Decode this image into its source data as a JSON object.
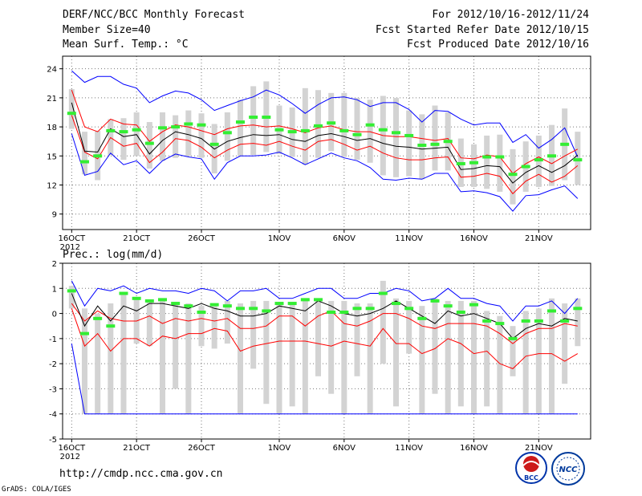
{
  "header": {
    "title": "DERF/NCC/BCC Monthly Forecast",
    "member_size": "Member Size=40",
    "variable1": "Mean Surf. Temp.: °C",
    "forecast_period": "For 2012/10/16-2012/11/24",
    "refer_date": "Fcst Started Refer Date 2012/10/15",
    "produced_date": "Fcst Produced Date 2012/10/16"
  },
  "panel2_label": "Prec.: log(mm/d)",
  "footer": {
    "url": "http://cmdp.ncc.cma.gov.cn",
    "credit": "GrADS: COLA/IGES",
    "logo1_text": "BCC",
    "logo2_text": "NCC"
  },
  "x_ticks": [
    {
      "day": 1,
      "label": "16OCT"
    },
    {
      "day": 6,
      "label": "21OCT"
    },
    {
      "day": 11,
      "label": "26OCT"
    },
    {
      "day": 17,
      "label": "1NOV"
    },
    {
      "day": 22,
      "label": "6NOV"
    },
    {
      "day": 27,
      "label": "11NOV"
    },
    {
      "day": 32,
      "label": "16NOV"
    },
    {
      "day": 37,
      "label": "21NOV"
    }
  ],
  "x_year_label": "2012",
  "chart_data": [
    {
      "type": "line",
      "title": "Mean Surf. Temp.: °C",
      "xlabel": "",
      "ylabel": "",
      "x": [
        1,
        2,
        3,
        4,
        5,
        6,
        7,
        8,
        9,
        10,
        11,
        12,
        13,
        14,
        15,
        16,
        17,
        18,
        19,
        20,
        21,
        22,
        23,
        24,
        25,
        26,
        27,
        28,
        29,
        30,
        31,
        32,
        33,
        34,
        35,
        36,
        37,
        38,
        39,
        40
      ],
      "xlim": [
        0.3,
        41
      ],
      "ylim": [
        7.4,
        25.3
      ],
      "yticks": [
        9,
        12,
        15,
        18,
        21,
        24
      ],
      "grid": true,
      "series": [
        {
          "name": "ensemble mean",
          "color": "#000000",
          "values": [
            20.5,
            15.5,
            15.4,
            17.8,
            17.0,
            17.2,
            15.2,
            16.6,
            17.5,
            17.2,
            16.8,
            15.7,
            16.5,
            16.9,
            17.2,
            17.1,
            17.2,
            16.7,
            16.5,
            17.1,
            17.3,
            17.0,
            16.6,
            16.8,
            16.3,
            16.0,
            15.9,
            15.7,
            15.8,
            15.9,
            13.6,
            13.7,
            14.0,
            13.9,
            12.2,
            13.3,
            14.0,
            13.3,
            14.0,
            15.1
          ]
        },
        {
          "name": "upper band (red)",
          "color": "#ff0000",
          "values": [
            21.8,
            18.0,
            17.5,
            18.8,
            18.3,
            18.2,
            16.5,
            17.5,
            18.2,
            18.0,
            17.6,
            17.2,
            17.8,
            18.1,
            18.2,
            18.0,
            18.1,
            17.8,
            17.4,
            17.9,
            18.1,
            17.7,
            17.5,
            17.5,
            17.1,
            17.0,
            17.0,
            16.8,
            16.6,
            16.8,
            14.8,
            14.7,
            15.1,
            14.9,
            13.2,
            14.2,
            14.9,
            14.2,
            15.0,
            15.7
          ]
        },
        {
          "name": "lower band (red)",
          "color": "#ff0000",
          "values": [
            19.2,
            15.4,
            14.7,
            16.9,
            16.0,
            16.3,
            14.3,
            15.4,
            16.8,
            16.6,
            15.9,
            14.8,
            15.6,
            16.2,
            16.3,
            16.1,
            16.5,
            16.0,
            15.6,
            16.5,
            16.7,
            16.2,
            15.6,
            16.0,
            15.3,
            14.8,
            14.6,
            14.6,
            14.8,
            14.9,
            12.8,
            12.9,
            13.2,
            12.9,
            11.1,
            12.4,
            13.1,
            12.3,
            12.9,
            14.0
          ]
        },
        {
          "name": "upper band (blue)",
          "color": "#0000ff",
          "values": [
            23.8,
            22.6,
            23.2,
            23.2,
            22.4,
            22.0,
            20.5,
            21.2,
            21.7,
            21.5,
            20.8,
            19.7,
            20.2,
            20.7,
            21.1,
            21.8,
            21.3,
            20.4,
            19.4,
            20.3,
            21.0,
            21.1,
            20.8,
            20.1,
            20.5,
            20.5,
            19.8,
            18.5,
            19.7,
            19.6,
            18.8,
            18.2,
            18.4,
            18.4,
            16.4,
            17.2,
            15.8,
            16.7,
            17.9,
            14.9
          ]
        },
        {
          "name": "lower band (blue)",
          "color": "#0000ff",
          "values": [
            17.3,
            13.0,
            13.4,
            15.3,
            14.1,
            14.5,
            13.2,
            14.5,
            15.2,
            14.9,
            14.7,
            12.6,
            14.3,
            15.0,
            15.0,
            15.1,
            15.4,
            14.8,
            14.1,
            14.7,
            15.3,
            14.8,
            14.5,
            13.8,
            12.6,
            12.5,
            12.7,
            12.6,
            13.2,
            13.2,
            11.3,
            11.4,
            11.2,
            10.8,
            9.3,
            10.9,
            11.0,
            11.5,
            11.9,
            10.6
          ]
        },
        {
          "name": "observed / climate (green)",
          "color": "#33ee33",
          "values": [
            19.4,
            14.4,
            15.0,
            17.6,
            17.5,
            17.7,
            16.3,
            17.9,
            18.0,
            18.3,
            18.2,
            16.2,
            17.4,
            18.5,
            19.0,
            19.0,
            17.7,
            17.5,
            17.6,
            18.1,
            18.4,
            17.6,
            17.2,
            18.2,
            17.7,
            17.4,
            17.1,
            16.1,
            16.2,
            16.5,
            14.2,
            14.3,
            14.9,
            14.9,
            13.1,
            13.9,
            14.6,
            15.0,
            16.2,
            14.6
          ]
        },
        {
          "name": "range box top (gray)",
          "color": "#d3d3d3",
          "values": [
            21.9,
            17.5,
            17.6,
            18.8,
            18.9,
            19.5,
            18.5,
            19.5,
            19.2,
            19.7,
            19.4,
            18.3,
            19.5,
            20.8,
            22.2,
            22.7,
            20.2,
            20.0,
            22.0,
            21.8,
            21.5,
            21.5,
            21.0,
            20.8,
            21.2,
            21.0,
            19.7,
            19.3,
            20.2,
            19.5,
            16.8,
            16.2,
            17.1,
            17.2,
            15.7,
            16.5,
            17.1,
            18.2,
            19.9,
            17.5
          ]
        },
        {
          "name": "range box bottom (gray)",
          "color": "#d3d3d3",
          "values": [
            17.8,
            13.1,
            12.5,
            15.1,
            14.6,
            15.0,
            13.7,
            14.5,
            14.8,
            15.0,
            14.8,
            13.2,
            14.5,
            15.0,
            15.1,
            15.4,
            15.2,
            14.9,
            14.1,
            14.8,
            15.5,
            14.9,
            14.6,
            14.3,
            13.0,
            12.8,
            12.9,
            12.6,
            13.5,
            13.5,
            11.8,
            11.8,
            11.6,
            11.3,
            10.0,
            11.3,
            11.8,
            11.9,
            12.5,
            12.0
          ]
        }
      ]
    },
    {
      "type": "line",
      "title": "Prec.: log(mm/d)",
      "xlabel": "",
      "ylabel": "",
      "x": [
        1,
        2,
        3,
        4,
        5,
        6,
        7,
        8,
        9,
        10,
        11,
        12,
        13,
        14,
        15,
        16,
        17,
        18,
        19,
        20,
        21,
        22,
        23,
        24,
        25,
        26,
        27,
        28,
        29,
        30,
        31,
        32,
        33,
        34,
        35,
        36,
        37,
        38,
        39,
        40
      ],
      "xlim": [
        0.3,
        41
      ],
      "ylim": [
        -5,
        2
      ],
      "yticks": [
        -5,
        -4,
        -3,
        -2,
        -1,
        0,
        1,
        2
      ],
      "grid": true,
      "series": [
        {
          "name": "ensemble mean",
          "color": "#000000",
          "values": [
            0.8,
            -0.5,
            0.3,
            -0.3,
            0.3,
            0.1,
            0.4,
            0.4,
            0.3,
            0.2,
            0.4,
            0.2,
            0.1,
            -0.1,
            -0.1,
            0.0,
            0.3,
            0.2,
            0.1,
            0.5,
            0.3,
            0.0,
            -0.1,
            0.0,
            0.2,
            0.5,
            0.2,
            -0.1,
            -0.4,
            0.1,
            -0.1,
            0.0,
            -0.2,
            -0.4,
            -1.0,
            -0.6,
            -0.4,
            -0.5,
            -0.2,
            -0.3
          ]
        },
        {
          "name": "upper band (red)",
          "color": "#ff0000",
          "values": [
            0.4,
            -0.3,
            0.1,
            -0.2,
            -0.3,
            -0.3,
            -0.1,
            -0.4,
            -0.2,
            -0.3,
            -0.2,
            -0.3,
            -0.2,
            -0.6,
            -0.6,
            -0.5,
            -0.1,
            -0.1,
            -0.5,
            -0.1,
            0.1,
            -0.4,
            -0.5,
            -0.3,
            0.0,
            0.0,
            -0.2,
            -0.5,
            -0.6,
            -0.4,
            -0.4,
            -0.4,
            -0.5,
            -0.8,
            -1.2,
            -0.8,
            -0.6,
            -0.6,
            -0.4,
            -0.5
          ]
        },
        {
          "name": "lower band (red)",
          "color": "#ff0000",
          "values": [
            0.2,
            -1.3,
            -0.8,
            -1.5,
            -1.0,
            -1.0,
            -1.3,
            -0.9,
            -1.0,
            -0.8,
            -0.8,
            -0.6,
            -0.7,
            -1.5,
            -1.3,
            -1.2,
            -1.1,
            -1.1,
            -1.1,
            -1.2,
            -1.3,
            -1.1,
            -1.2,
            -1.3,
            -0.6,
            -1.2,
            -1.2,
            -1.6,
            -1.4,
            -1.0,
            -1.2,
            -1.6,
            -1.5,
            -2.0,
            -2.2,
            -1.7,
            -1.6,
            -1.6,
            -1.9,
            -1.6
          ]
        },
        {
          "name": "upper band (blue)",
          "color": "#0000ff",
          "values": [
            1.3,
            0.3,
            1.0,
            0.9,
            1.1,
            0.8,
            1.0,
            0.9,
            0.9,
            0.8,
            1.0,
            0.9,
            0.5,
            0.9,
            0.9,
            1.0,
            0.6,
            0.6,
            0.8,
            1.0,
            1.0,
            0.6,
            0.6,
            0.8,
            0.8,
            1.0,
            0.9,
            0.5,
            0.6,
            1.0,
            0.6,
            0.6,
            0.4,
            0.3,
            -0.3,
            0.3,
            0.3,
            0.5,
            0.0,
            0.6
          ]
        },
        {
          "name": "lower band (blue)",
          "color": "#0000ff",
          "values": [
            -1.2,
            -4.0,
            -4.0,
            -4.0,
            -4.0,
            -4.0,
            -4.0,
            -4.0,
            -4.0,
            -4.0,
            -4.0,
            -4.0,
            -4.0,
            -4.0,
            -4.0,
            -4.0,
            -4.0,
            -4.0,
            -4.0,
            -4.0,
            -4.0,
            -4.0,
            -4.0,
            -4.0,
            -4.0,
            -4.0,
            -4.0,
            -4.0,
            -4.0,
            -4.0,
            -4.0,
            -4.0,
            -4.0,
            -4.0,
            -4.0,
            -4.0,
            -4.0,
            -4.0,
            -4.0,
            -4.0
          ]
        },
        {
          "name": "observed / climate (green)",
          "color": "#33ee33",
          "values": [
            0.9,
            -0.8,
            -0.2,
            -0.5,
            0.8,
            0.6,
            0.5,
            0.55,
            0.4,
            0.3,
            0.05,
            0.35,
            0.3,
            0.2,
            0.2,
            0.1,
            0.4,
            0.4,
            0.55,
            0.55,
            0.05,
            0.05,
            0.2,
            0.2,
            0.8,
            0.4,
            0.2,
            -0.2,
            0.5,
            0.3,
            0.05,
            0.35,
            -0.3,
            -0.4,
            -1.0,
            -0.3,
            -0.3,
            0.1,
            -0.3,
            0.2
          ]
        },
        {
          "name": "range box top (gray)",
          "color": "#d3d3d3",
          "values": [
            1.1,
            0.2,
            0.0,
            0.4,
            0.8,
            0.6,
            0.5,
            0.5,
            0.4,
            0.4,
            0.3,
            0.4,
            0.5,
            0.4,
            0.5,
            0.5,
            0.4,
            0.4,
            0.6,
            0.6,
            0.5,
            0.5,
            0.4,
            0.4,
            1.3,
            0.6,
            0.5,
            0.3,
            0.6,
            0.5,
            0.5,
            0.5,
            0.1,
            -0.1,
            -0.5,
            0.1,
            0.2,
            0.6,
            0.4,
            0.6
          ]
        },
        {
          "name": "range box bottom (gray)",
          "color": "#d3d3d3",
          "values": [
            0.2,
            -4.0,
            -4.0,
            -4.0,
            -4.0,
            -1.2,
            -1.3,
            -4.0,
            -3.0,
            -4.0,
            -1.3,
            -1.4,
            -1.2,
            -4.0,
            -2.2,
            -3.6,
            -4.0,
            -3.7,
            -4.0,
            -2.5,
            -3.2,
            -4.0,
            -2.5,
            -4.0,
            -2.0,
            -3.7,
            -1.6,
            -4.0,
            -3.2,
            -4.0,
            -3.7,
            -4.0,
            -3.7,
            -4.0,
            -2.5,
            -4.0,
            -4.0,
            -4.0,
            -2.8,
            -1.3
          ]
        }
      ]
    }
  ]
}
